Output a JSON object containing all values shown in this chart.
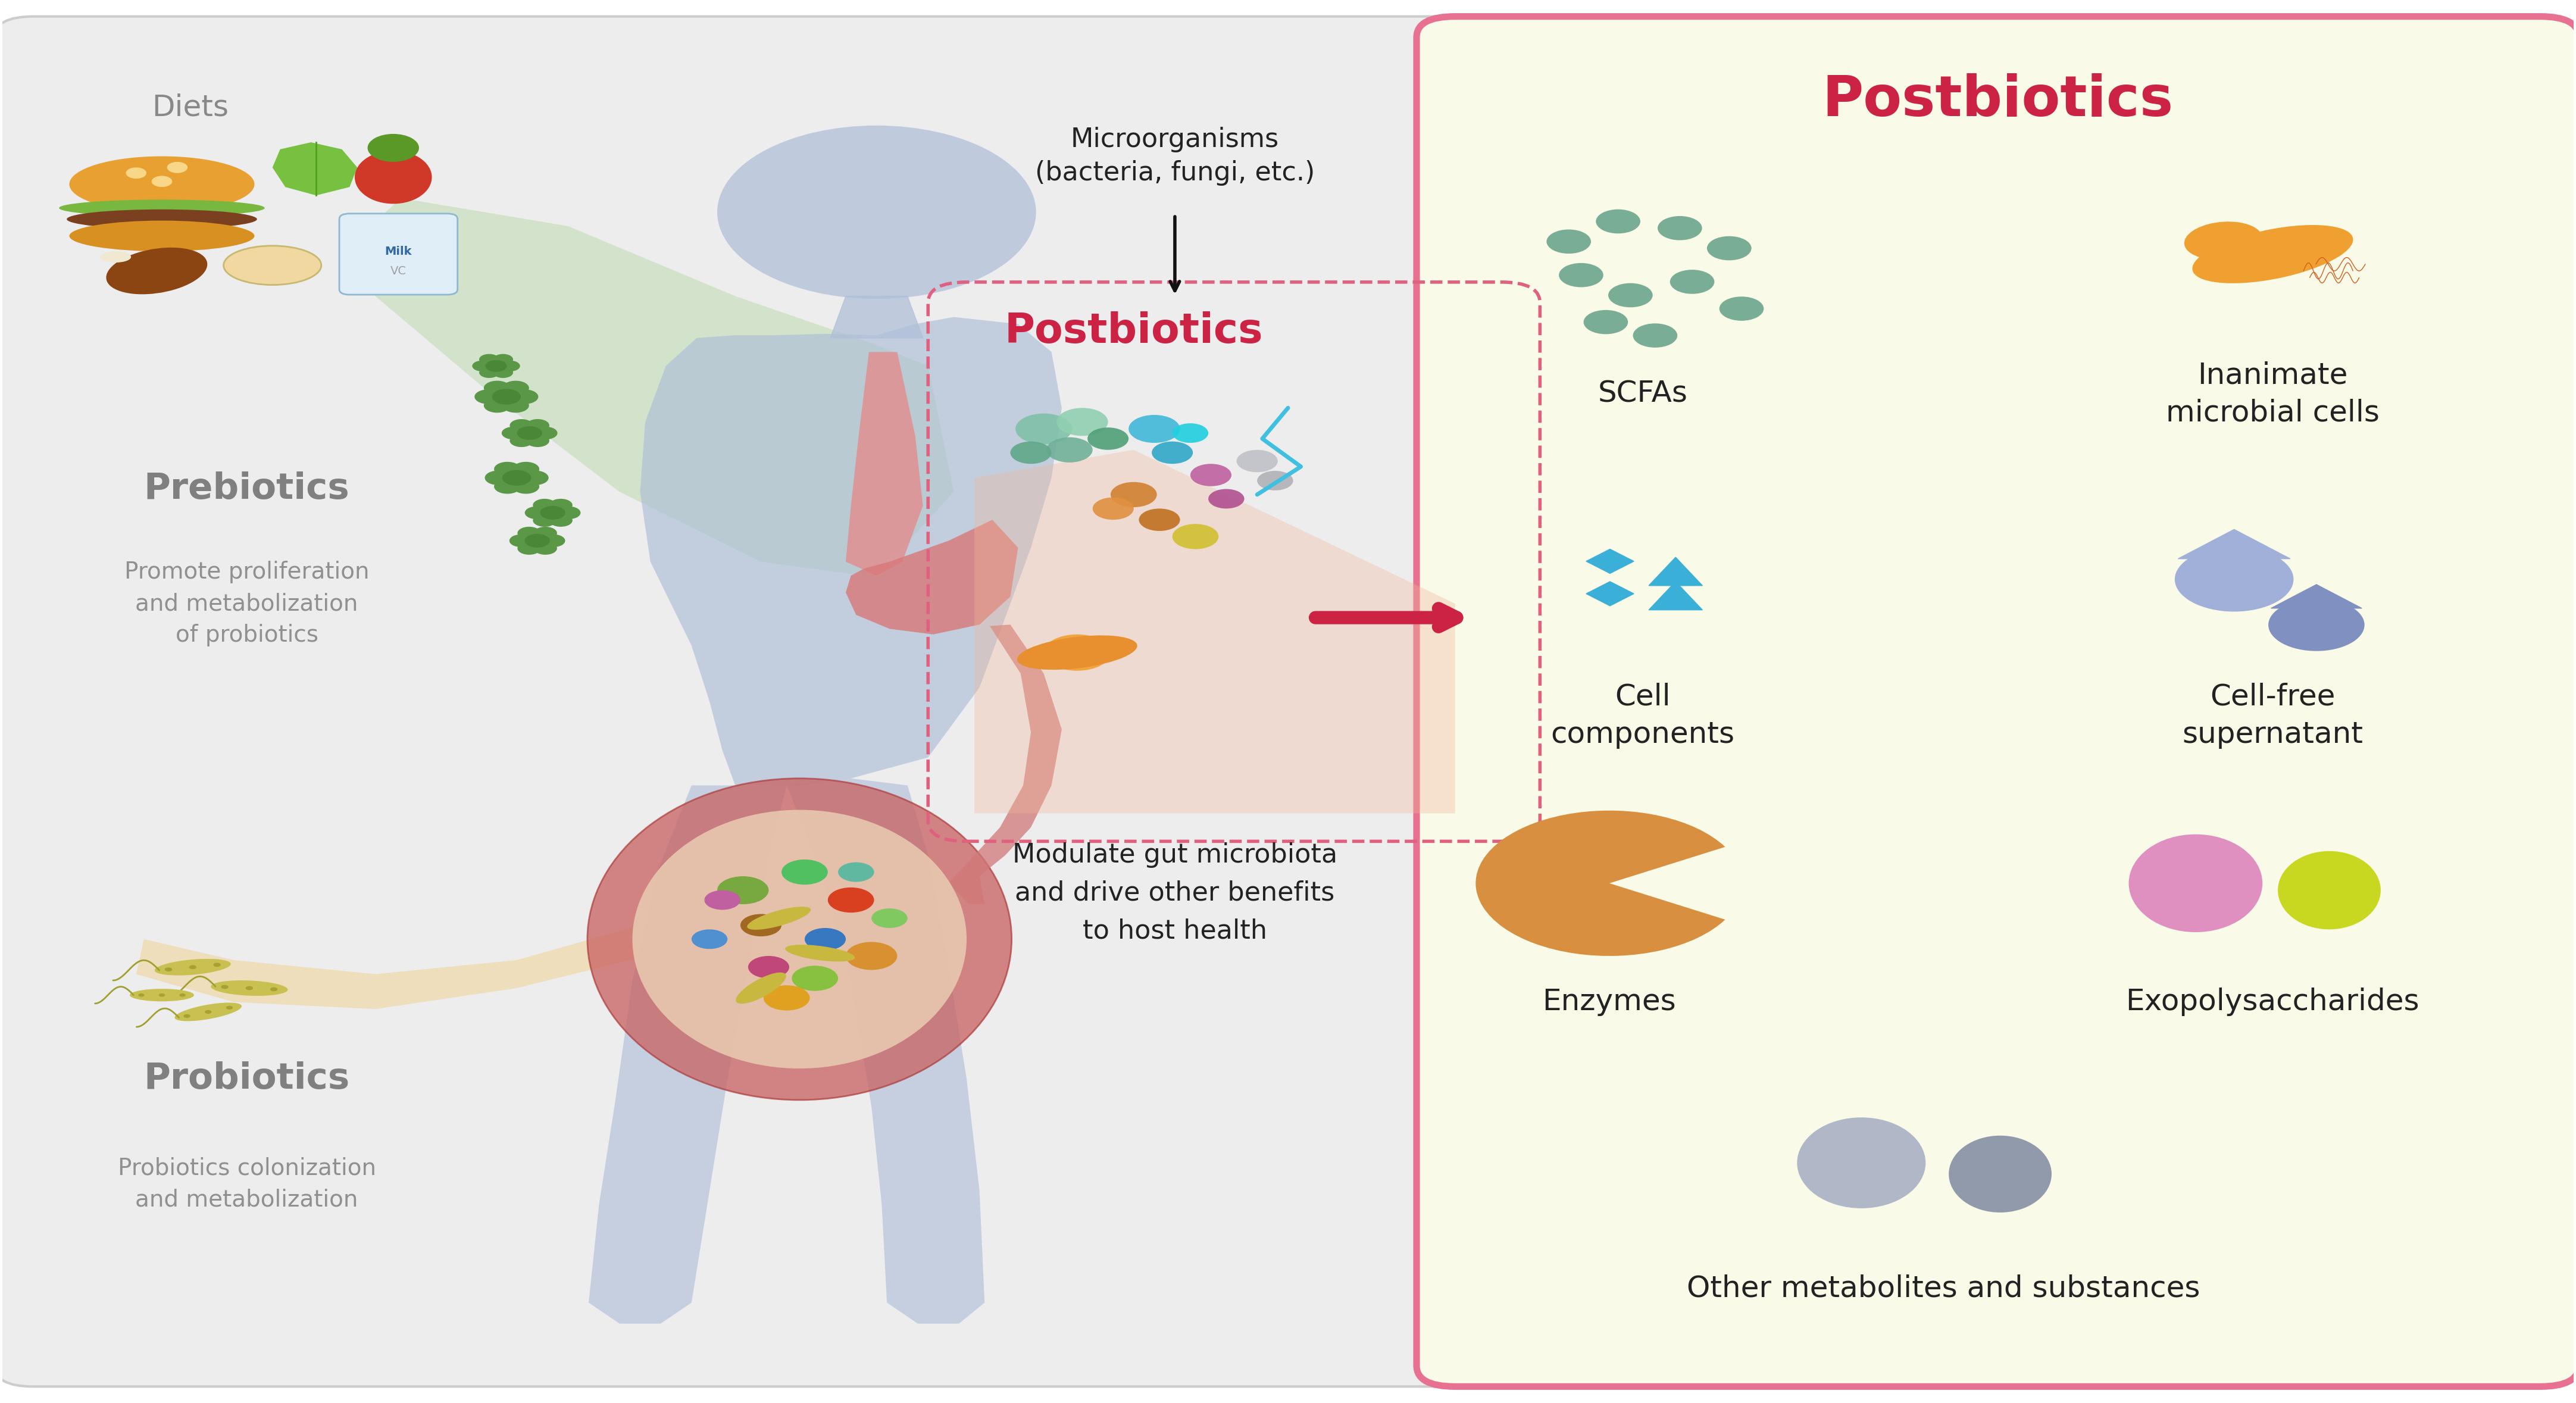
{
  "fig_width": 43.28,
  "fig_height": 23.57,
  "bg_left_panel": "#ededee",
  "bg_right_panel": "#fafae8",
  "right_panel_border": "#e87090",
  "left_panel_border": "#cccccc",
  "title_postbiotics": "Postbiotics",
  "title_color": "#cc2244",
  "text_diets": "Diets",
  "text_prebiotics": "Prebiotics",
  "text_prebiotics_sub": "Promote proliferation\nand metabolization\nof probiotics",
  "text_probiotics": "Probiotics",
  "text_probiotics_sub": "Probiotics colonization\nand metabolization",
  "text_microorganisms": "Microorganisms\n(bacteria, fungi, etc.)",
  "text_postbiotics_mid": "Postbiotics",
  "text_modulate": "Modulate gut microbiota\nand drive other benefits\nto host health",
  "scfa_color": "#7aad95",
  "cell_comp_color": "#3ab0d8",
  "drop_color": "#8090c8",
  "enzyme_color": "#d89040",
  "eps_pink": "#e090c0",
  "eps_yellow": "#c8d820",
  "other_gray1": "#b0b8c8",
  "other_gray2": "#909aaa",
  "body_color": "#b0c0d8",
  "prebiotic_green": "#5a9060",
  "probiotic_yellow": "#c8c048",
  "green_band": "#90c870",
  "orange_band": "#f0c870"
}
